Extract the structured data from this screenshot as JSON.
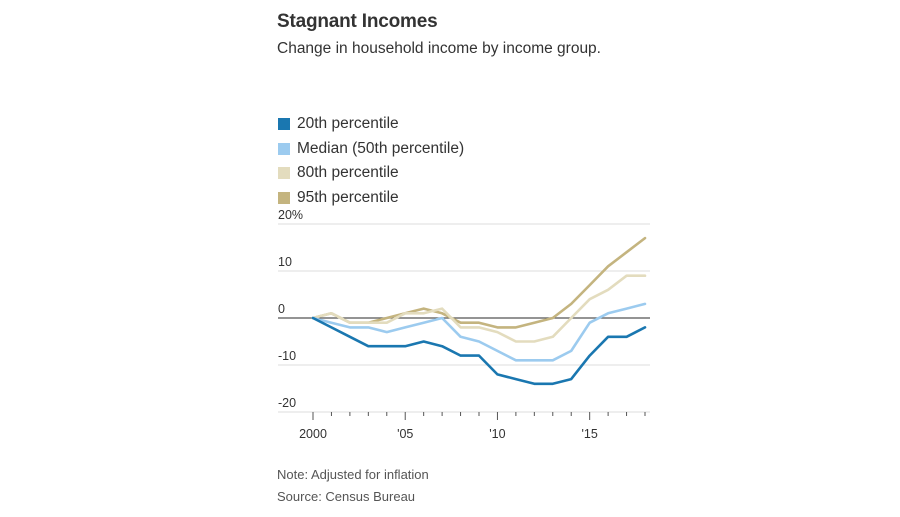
{
  "header": {
    "title": "Stagnant Incomes",
    "subtitle": "Change in household income by income group."
  },
  "footer": {
    "note": "Note: Adjusted for inflation",
    "source": "Source: Census Bureau"
  },
  "chart_data": {
    "type": "line",
    "title": "Stagnant Incomes",
    "subtitle": "Change in household income by income group.",
    "xlabel": "",
    "ylabel": "",
    "x": [
      2000,
      2001,
      2002,
      2003,
      2004,
      2005,
      2006,
      2007,
      2008,
      2009,
      2010,
      2011,
      2012,
      2013,
      2014,
      2015,
      2016,
      2017,
      2018
    ],
    "xlim": [
      2000,
      2018
    ],
    "ylim": [
      -20,
      20
    ],
    "x_ticks": [
      2000,
      2005,
      2010,
      2015
    ],
    "x_tick_labels": [
      "2000",
      "'05",
      "'10",
      "'15"
    ],
    "y_ticks": [
      20,
      10,
      0,
      -10,
      -20
    ],
    "y_tick_labels": [
      "20%",
      "10",
      "0",
      "-10",
      "-20"
    ],
    "grid": true,
    "legend_position": "top-left",
    "series": [
      {
        "name": "95th percentile",
        "color": "#c4b47f",
        "values": [
          0,
          1,
          -1,
          -1,
          0,
          1,
          2,
          1,
          -1,
          -1,
          -2,
          -2,
          -1,
          0,
          3,
          7,
          11,
          14,
          17
        ]
      },
      {
        "name": "80th percentile",
        "color": "#e3dcbe",
        "values": [
          0,
          1,
          -1,
          -1,
          -1,
          1,
          1,
          2,
          -2,
          -2,
          -3,
          -5,
          -5,
          -4,
          0,
          4,
          6,
          9,
          9
        ]
      },
      {
        "name": "Median (50th percentile)",
        "color": "#9ccbef",
        "values": [
          0,
          -1,
          -2,
          -2,
          -3,
          -2,
          -1,
          0,
          -4,
          -5,
          -7,
          -9,
          -9,
          -9,
          -7,
          -1,
          1,
          2,
          3
        ]
      },
      {
        "name": "20th percentile",
        "color": "#1a77b0",
        "values": [
          0,
          -2,
          -4,
          -6,
          -6,
          -6,
          -5,
          -6,
          -8,
          -8,
          -12,
          -13,
          -14,
          -14,
          -13,
          -8,
          -4,
          -4,
          -2
        ]
      }
    ],
    "legend": [
      {
        "label": "20th percentile",
        "color": "#1a77b0"
      },
      {
        "label": "Median (50th percentile)",
        "color": "#9ccbef"
      },
      {
        "label": "80th percentile",
        "color": "#e3dcbe"
      },
      {
        "label": "95th percentile",
        "color": "#c4b47f"
      }
    ]
  }
}
